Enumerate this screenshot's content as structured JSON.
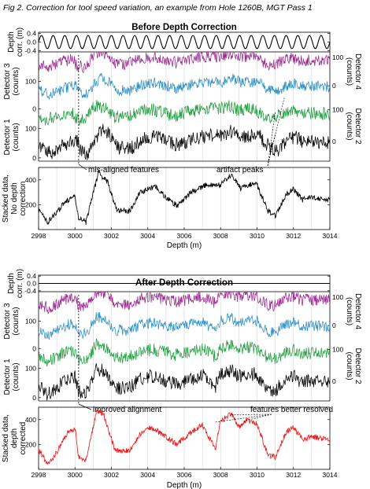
{
  "figure_title": "Fig 2. Correction for tool speed variation, an example from Hole 1260B, MGT Pass 1",
  "colors": {
    "detector1": "#000000",
    "detector2": "#1f9f3f",
    "detector3": "#2b8fc4",
    "detector4": "#99268e",
    "stacked_before": "#000000",
    "stacked_after": "#ee1c1c",
    "grid": "#d4d4d4"
  },
  "chart_data": [
    {
      "type": "line",
      "title": "Before Depth Correction",
      "xlabel": "Depth (m)",
      "xlim": [
        2998,
        3014
      ],
      "x_ticks": [
        "2998",
        "3000",
        "3002",
        "3004",
        "3006",
        "3008",
        "3010",
        "3012",
        "3014"
      ],
      "grid": "vertical lines every 1 m",
      "panels": {
        "depth_corr": {
          "ylabel_lines": [
            "Depth",
            "corr. (m)"
          ],
          "ylim": [
            -0.45,
            0.45
          ],
          "y_ticks": [
            "0.4",
            "0.0",
            "-0.4"
          ],
          "series": [
            {
              "name": "Depth correction",
              "shape": "oscillating, amplitude 0.3 m, 25 cycles"
            }
          ]
        },
        "detectors": {
          "left_ticks_upper": [
            "100",
            "0"
          ],
          "left_ticks_lower": [
            "100",
            "0"
          ],
          "right_ticks_upper": [
            "100",
            "0"
          ],
          "right_ticks_lower": [
            "100",
            "0"
          ],
          "left_labels": [
            "Detector 3",
            "(counts)",
            "Detector 1",
            "(counts)"
          ],
          "right_labels": [
            "Detector 4",
            "(counts)",
            "Detector 2",
            "(counts)"
          ],
          "series": [
            {
              "name": "Detector 4",
              "color": "#99268e",
              "range_counts": [
                60,
                140
              ]
            },
            {
              "name": "Detector 3",
              "color": "#2b8fc4",
              "range_counts": [
                20,
                120
              ]
            },
            {
              "name": "Detector 2",
              "color": "#1f9f3f",
              "range_counts": [
                60,
                140
              ]
            },
            {
              "name": "Detector 1",
              "color": "#000000",
              "range_counts": [
                0,
                110
              ]
            }
          ],
          "annotations": [
            "mis-aligned features",
            "artifact peaks"
          ]
        },
        "stacked": {
          "ylabel_lines": [
            "Stacked data,",
            "No depth",
            "correction"
          ],
          "ylim": [
            0,
            500
          ],
          "y_ticks": [
            "400",
            "200"
          ],
          "series_name": "Stacked data",
          "key_points": [
            [
              2998.0,
              160
            ],
            [
              2998.5,
              60
            ],
            [
              2999.0,
              140
            ],
            [
              2999.5,
              230
            ],
            [
              3000.0,
              270
            ],
            [
              3000.2,
              100
            ],
            [
              3000.6,
              60
            ],
            [
              3001.3,
              460
            ],
            [
              3001.8,
              380
            ],
            [
              3002.3,
              150
            ],
            [
              3003.0,
              150
            ],
            [
              3003.6,
              300
            ],
            [
              3004.4,
              350
            ],
            [
              3005.0,
              260
            ],
            [
              3005.6,
              190
            ],
            [
              3006.4,
              300
            ],
            [
              3007.2,
              360
            ],
            [
              3008.0,
              360
            ],
            [
              3008.6,
              440
            ],
            [
              3009.1,
              330
            ],
            [
              3009.5,
              360
            ],
            [
              3010.0,
              360
            ],
            [
              3010.6,
              150
            ],
            [
              3011.0,
              110
            ],
            [
              3011.6,
              280
            ],
            [
              3012.0,
              330
            ],
            [
              3012.5,
              240
            ],
            [
              3013.0,
              260
            ],
            [
              3014.0,
              240
            ]
          ]
        }
      }
    },
    {
      "type": "line",
      "title": "After Depth Correction",
      "xlabel": "Depth (m)",
      "xlim": [
        2998,
        3014
      ],
      "x_ticks": [
        "2998",
        "3000",
        "3002",
        "3004",
        "3006",
        "3008",
        "3010",
        "3012",
        "3014"
      ],
      "grid": "vertical lines every 1 m",
      "panels": {
        "depth_corr": {
          "ylabel_lines": [
            "Depth",
            "corr. (m)"
          ],
          "ylim": [
            -0.45,
            0.45
          ],
          "y_ticks": [
            "0.4",
            "0.0",
            "-0.4"
          ],
          "series": [
            {
              "name": "Depth correction",
              "shape": "flat at 0.0 m"
            }
          ]
        },
        "detectors": {
          "left_ticks_upper": [
            "100",
            "0"
          ],
          "left_ticks_lower": [
            "100",
            "0"
          ],
          "right_ticks_upper": [
            "100",
            "0"
          ],
          "right_ticks_lower": [
            "100",
            "0"
          ],
          "left_labels": [
            "Detector 3",
            "(counts)",
            "Detector 1",
            "(counts)"
          ],
          "right_labels": [
            "Detector 4",
            "(counts)",
            "Detector 2",
            "(counts)"
          ],
          "series": [
            {
              "name": "Detector 4",
              "color": "#99268e",
              "range_counts": [
                60,
                140
              ]
            },
            {
              "name": "Detector 3",
              "color": "#2b8fc4",
              "range_counts": [
                20,
                120
              ]
            },
            {
              "name": "Detector 2",
              "color": "#1f9f3f",
              "range_counts": [
                60,
                140
              ]
            },
            {
              "name": "Detector 1",
              "color": "#000000",
              "range_counts": [
                0,
                110
              ]
            }
          ],
          "annotations": [
            "improved alignment",
            "features better resolved"
          ]
        },
        "stacked": {
          "ylabel_lines": [
            "Stacked data,",
            "depth",
            "corrected"
          ],
          "ylim": [
            0,
            500
          ],
          "y_ticks": [
            "400",
            "200"
          ],
          "series_name": "Stacked data",
          "key_points": [
            [
              2998.0,
              160
            ],
            [
              2998.5,
              40
            ],
            [
              2998.8,
              80
            ],
            [
              2999.2,
              200
            ],
            [
              2999.6,
              300
            ],
            [
              3000.0,
              330
            ],
            [
              3000.2,
              100
            ],
            [
              3000.6,
              60
            ],
            [
              3001.2,
              480
            ],
            [
              3001.6,
              430
            ],
            [
              3002.2,
              150
            ],
            [
              3003.0,
              150
            ],
            [
              3003.6,
              290
            ],
            [
              3004.2,
              340
            ],
            [
              3005.0,
              260
            ],
            [
              3005.6,
              200
            ],
            [
              3006.4,
              300
            ],
            [
              3007.0,
              360
            ],
            [
              3007.7,
              160
            ],
            [
              3008.0,
              390
            ],
            [
              3008.6,
              450
            ],
            [
              3009.0,
              340
            ],
            [
              3009.4,
              400
            ],
            [
              3010.0,
              370
            ],
            [
              3010.6,
              110
            ],
            [
              3011.0,
              100
            ],
            [
              3011.6,
              300
            ],
            [
              3012.0,
              340
            ],
            [
              3012.5,
              240
            ],
            [
              3013.0,
              260
            ],
            [
              3014.0,
              240
            ]
          ]
        }
      }
    }
  ]
}
